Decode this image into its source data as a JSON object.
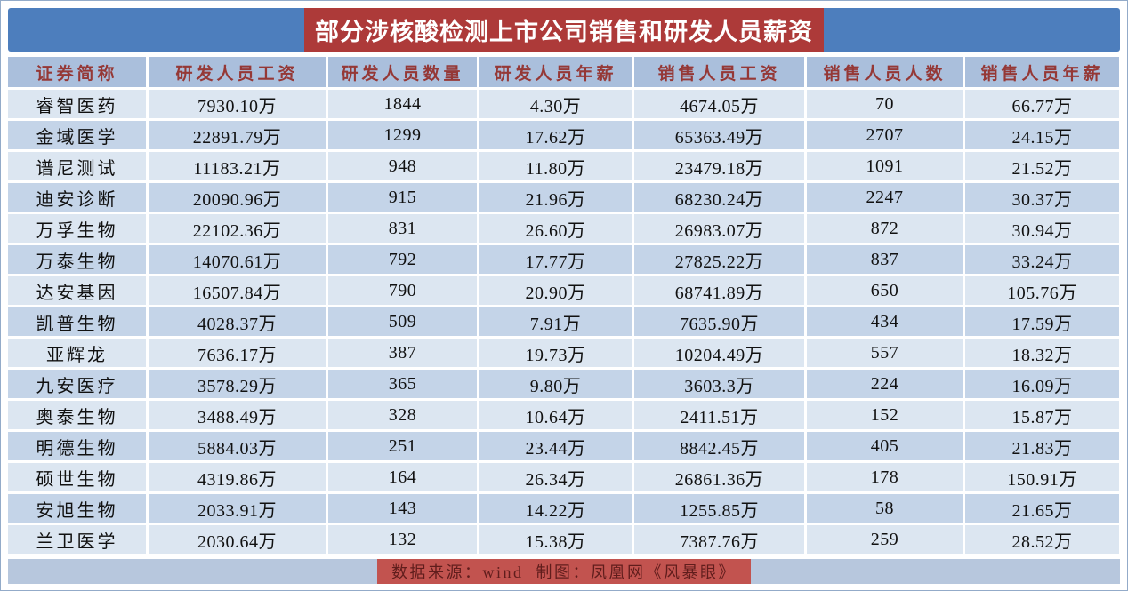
{
  "title": "部分涉核酸检测上市公司销售和研发人员薪资",
  "footer": {
    "note": "数据来源：wind  制图：凤凰网《风暴眼》"
  },
  "colors": {
    "title_bar_blue": "#4d7ebd",
    "title_band_red": "#ad3a39",
    "title_text": "#ffffff",
    "header_bg": "#aabfdc",
    "header_text": "#953836",
    "row_odd_bg": "#dce6f1",
    "row_even_bg": "#c4d4e8",
    "data_text": "#111111",
    "footer_bg": "#b7c7dd",
    "footer_band_red": "#c2534f",
    "footer_text": "#601d1c"
  },
  "chart_data": {
    "type": "table",
    "title": "部分涉核酸检测上市公司销售和研发人员薪资",
    "columns": [
      "证券简称",
      "研发人员工资",
      "研发人员数量",
      "研发人员年薪",
      "销售人员工资",
      "销售人员人数",
      "销售人员年薪"
    ],
    "rows": [
      [
        "睿智医药",
        "7930.10万",
        "1844",
        "4.30万",
        "4674.05万",
        "70",
        "66.77万"
      ],
      [
        "金域医学",
        "22891.79万",
        "1299",
        "17.62万",
        "65363.49万",
        "2707",
        "24.15万"
      ],
      [
        "谱尼测试",
        "11183.21万",
        "948",
        "11.80万",
        "23479.18万",
        "1091",
        "21.52万"
      ],
      [
        "迪安诊断",
        "20090.96万",
        "915",
        "21.96万",
        "68230.24万",
        "2247",
        "30.37万"
      ],
      [
        "万孚生物",
        "22102.36万",
        "831",
        "26.60万",
        "26983.07万",
        "872",
        "30.94万"
      ],
      [
        "万泰生物",
        "14070.61万",
        "792",
        "17.77万",
        "27825.22万",
        "837",
        "33.24万"
      ],
      [
        "达安基因",
        "16507.84万",
        "790",
        "20.90万",
        "68741.89万",
        "650",
        "105.76万"
      ],
      [
        "凯普生物",
        "4028.37万",
        "509",
        "7.91万",
        "7635.90万",
        "434",
        "17.59万"
      ],
      [
        "亚辉龙",
        "7636.17万",
        "387",
        "19.73万",
        "10204.49万",
        "557",
        "18.32万"
      ],
      [
        "九安医疗",
        "3578.29万",
        "365",
        "9.80万",
        "3603.3万",
        "224",
        "16.09万"
      ],
      [
        "奥泰生物",
        "3488.49万",
        "328",
        "10.64万",
        "2411.51万",
        "152",
        "15.87万"
      ],
      [
        "明德生物",
        "5884.03万",
        "251",
        "23.44万",
        "8842.45万",
        "405",
        "21.83万"
      ],
      [
        "硕世生物",
        "4319.86万",
        "164",
        "26.34万",
        "26861.36万",
        "178",
        "150.91万"
      ],
      [
        "安旭生物",
        "2033.91万",
        "143",
        "14.22万",
        "1255.85万",
        "58",
        "21.65万"
      ],
      [
        "兰卫医学",
        "2030.64万",
        "132",
        "15.38万",
        "7387.76万",
        "259",
        "28.52万"
      ]
    ]
  }
}
